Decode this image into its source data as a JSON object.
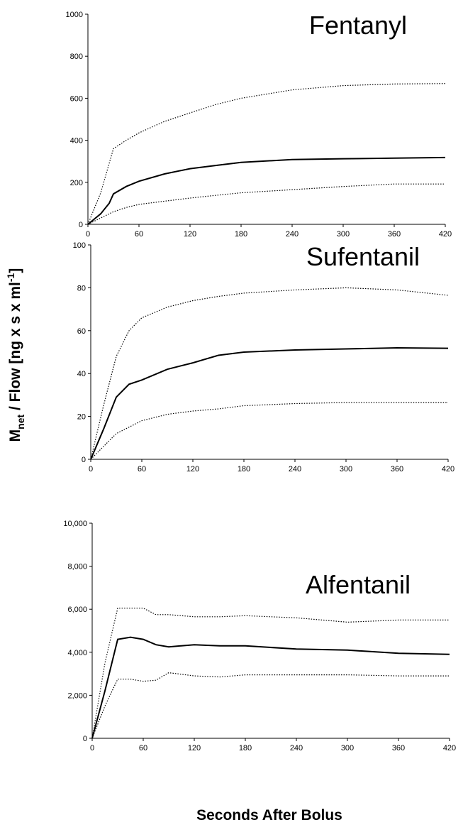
{
  "y_label": [
    "M",
    "net",
    " / Flow [ng x s x ml",
    "-1",
    "]"
  ],
  "x_label": "Seconds After Bolus",
  "chart_data": [
    {
      "type": "line",
      "title": "Fentanyl",
      "x": [
        0,
        15,
        25,
        30,
        45,
        60,
        90,
        120,
        150,
        180,
        240,
        300,
        360,
        420
      ],
      "xlim": [
        0,
        420
      ],
      "xticks": [
        0,
        60,
        120,
        180,
        240,
        300,
        360,
        420
      ],
      "ylim": [
        0,
        1000
      ],
      "yticks": [
        0,
        200,
        400,
        600,
        800,
        1000
      ],
      "series": [
        {
          "color": "#000000",
          "style": "solid",
          "values": [
            0,
            50,
            100,
            145,
            180,
            205,
            240,
            265,
            280,
            295,
            308,
            312,
            315,
            318
          ]
        },
        {
          "color": "#000000",
          "style": "dotted",
          "values": [
            0,
            150,
            290,
            360,
            400,
            435,
            490,
            530,
            570,
            600,
            640,
            660,
            668,
            670
          ]
        },
        {
          "color": "#000000",
          "style": "dotted",
          "values": [
            0,
            30,
            50,
            60,
            80,
            95,
            110,
            125,
            138,
            150,
            165,
            180,
            192,
            192
          ]
        }
      ]
    },
    {
      "type": "line",
      "title": "Sufentanil",
      "x": [
        0,
        15,
        30,
        45,
        60,
        90,
        120,
        150,
        180,
        240,
        300,
        360,
        420
      ],
      "xlim": [
        0,
        420
      ],
      "xticks": [
        0,
        60,
        120,
        180,
        240,
        300,
        360,
        420
      ],
      "ylim": [
        0,
        100
      ],
      "yticks": [
        0,
        20,
        40,
        60,
        80,
        100
      ],
      "series": [
        {
          "color": "#000000",
          "style": "solid",
          "values": [
            0,
            14,
            29,
            35,
            37,
            42,
            45,
            48.5,
            50,
            51,
            51.5,
            52,
            51.8
          ]
        },
        {
          "color": "#000000",
          "style": "dotted",
          "values": [
            0,
            25,
            48,
            60,
            66,
            71,
            74,
            76,
            77.5,
            79,
            80,
            79,
            76.5
          ]
        },
        {
          "color": "#000000",
          "style": "dotted",
          "values": [
            0,
            6,
            12,
            15,
            18,
            21,
            22.5,
            23.5,
            25,
            26,
            26.5,
            26.5,
            26.5
          ]
        }
      ]
    },
    {
      "type": "line",
      "title": "Alfentanil",
      "x": [
        0,
        15,
        30,
        45,
        60,
        75,
        90,
        120,
        150,
        180,
        240,
        300,
        360,
        420
      ],
      "xlim": [
        0,
        420
      ],
      "xticks": [
        0,
        60,
        120,
        180,
        240,
        300,
        360,
        420
      ],
      "ylim": [
        0,
        10000
      ],
      "yticks": [
        0,
        {
          "value": 2000,
          "label": "2,000"
        },
        {
          "value": 4000,
          "label": "4,000"
        },
        {
          "value": 6000,
          "label": "6,000"
        },
        {
          "value": 8000,
          "label": "8,000"
        },
        {
          "value": 10000,
          "label": "10,000"
        }
      ],
      "series": [
        {
          "color": "#000000",
          "style": "solid",
          "values": [
            0,
            2200,
            4600,
            4700,
            4600,
            4350,
            4250,
            4350,
            4300,
            4300,
            4150,
            4100,
            3950,
            3900
          ]
        },
        {
          "color": "#000000",
          "style": "dotted",
          "values": [
            0,
            3500,
            6050,
            6050,
            6050,
            5750,
            5750,
            5650,
            5650,
            5700,
            5600,
            5400,
            5500,
            5500
          ]
        },
        {
          "color": "#000000",
          "style": "dotted",
          "values": [
            0,
            1500,
            2750,
            2750,
            2650,
            2700,
            3050,
            2900,
            2850,
            2950,
            2950,
            2950,
            2900,
            2900
          ]
        }
      ]
    }
  ]
}
